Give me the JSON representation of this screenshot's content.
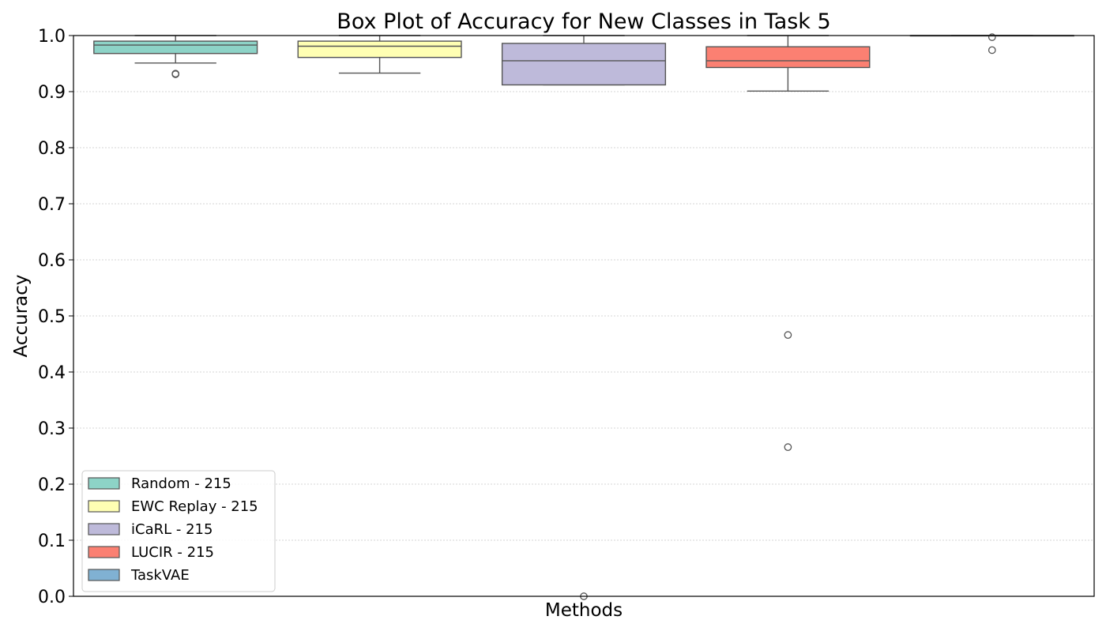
{
  "chart_data": {
    "type": "box",
    "title": "Box Plot of Accuracy for New Classes in Task 5",
    "xlabel": "Methods",
    "ylabel": "Accuracy",
    "ylim": [
      0.0,
      1.0
    ],
    "yticks": [
      "0.0",
      "0.1",
      "0.2",
      "0.3",
      "0.4",
      "0.5",
      "0.6",
      "0.7",
      "0.8",
      "0.9",
      "1.0"
    ],
    "grid": "horizontal dotted",
    "legend_position": "lower-left",
    "series": [
      {
        "name": "Random - 215",
        "color": "#8dd3c7",
        "whisker_low": 0.951,
        "q1": 0.968,
        "median": 0.983,
        "q3": 0.99,
        "whisker_high": 1.0,
        "outliers": [
          0.932,
          0.931
        ]
      },
      {
        "name": "EWC Replay - 215",
        "color": "#ffffb3",
        "whisker_low": 0.933,
        "q1": 0.961,
        "median": 0.981,
        "q3": 0.99,
        "whisker_high": 1.0,
        "outliers": []
      },
      {
        "name": "iCaRL - 215",
        "color": "#bebada",
        "whisker_low": 0.912,
        "q1": 0.912,
        "median": 0.955,
        "q3": 0.986,
        "whisker_high": 1.0,
        "outliers": [
          0.0
        ]
      },
      {
        "name": "LUCIR - 215",
        "color": "#fb8072",
        "whisker_low": 0.901,
        "q1": 0.943,
        "median": 0.955,
        "q3": 0.98,
        "whisker_high": 1.0,
        "outliers": [
          0.466,
          0.266
        ]
      },
      {
        "name": "TaskVAE",
        "color": "#80b1d3",
        "whisker_low": 1.0,
        "q1": 1.0,
        "median": 1.0,
        "q3": 1.0,
        "whisker_high": 1.0,
        "outliers": [
          0.997,
          0.974
        ]
      }
    ]
  }
}
